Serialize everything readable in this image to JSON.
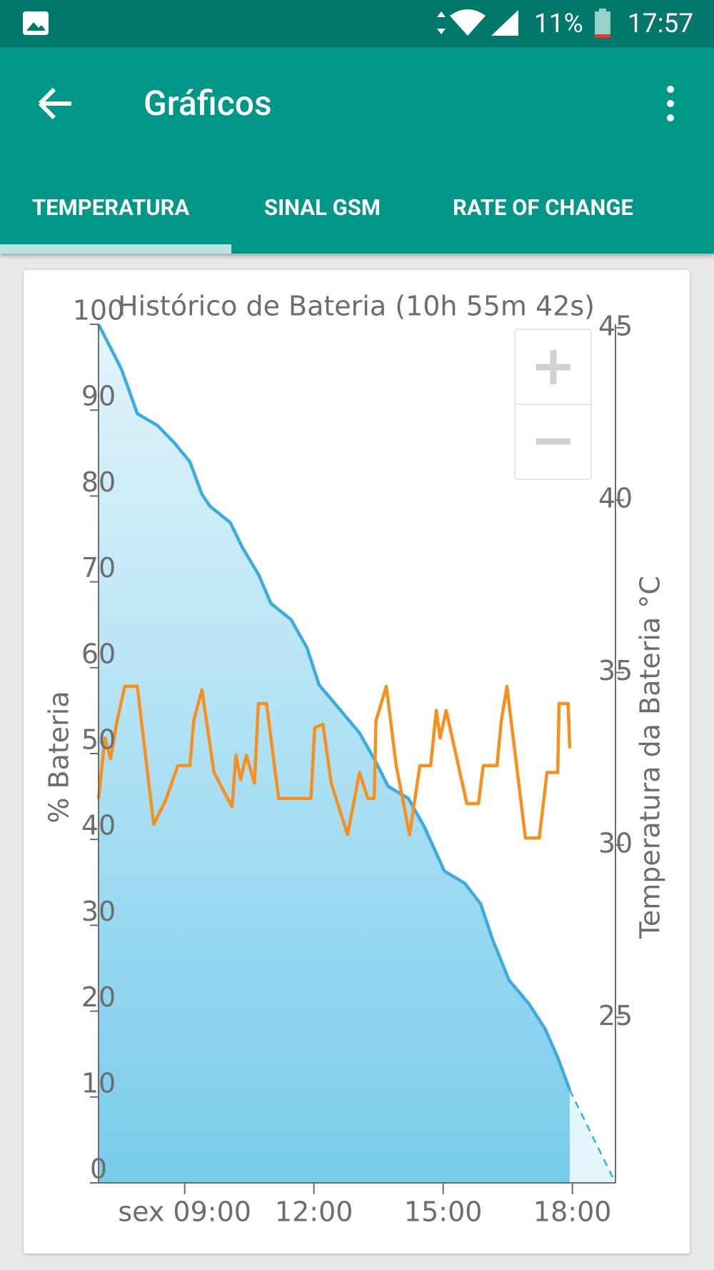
{
  "status_bar": {
    "battery": "11%",
    "time": "17:57"
  },
  "app_bar": {
    "title": "Gráficos"
  },
  "tabs": [
    "TEMPERATURA",
    "SINAL GSM",
    "RATE OF CHANGE"
  ],
  "chart_data": {
    "type": "line",
    "title": "Histórico de Bateria (10h 55m 42s)",
    "ylabel": "% Bateria",
    "y2label": "Temperatura da Bateria °C",
    "xlim": [
      7.0,
      19.0
    ],
    "xticks": [
      {
        "value": 9,
        "label": "sex 09:00"
      },
      {
        "value": 12,
        "label": "12:00"
      },
      {
        "value": 15,
        "label": "15:00"
      },
      {
        "value": 18,
        "label": "18:00"
      }
    ],
    "ylim": [
      0,
      100
    ],
    "yticks": [
      0,
      10,
      20,
      30,
      40,
      50,
      60,
      70,
      80,
      90,
      100
    ],
    "y2lim": [
      20.2,
      45.1
    ],
    "y2ticks": [
      25,
      30,
      35,
      40,
      45
    ],
    "grid": false,
    "series": [
      {
        "color": "#3aace0",
        "fill": true,
        "dashed": false,
        "x": [
          7.0,
          7.53,
          7.9,
          8.37,
          8.74,
          9.12,
          9.4,
          9.59,
          10.06,
          10.34,
          10.72,
          11.0,
          11.47,
          11.84,
          12.12,
          12.59,
          13.06,
          13.44,
          13.72,
          14.19,
          14.56,
          15.03,
          15.5,
          15.87,
          16.15,
          16.53,
          17.0,
          17.37,
          17.66,
          17.94
        ],
        "values": [
          100,
          94.8,
          89.6,
          88.2,
          86.3,
          84,
          80.2,
          78.8,
          76.9,
          74,
          70.8,
          67.5,
          65.6,
          62.3,
          58,
          55.2,
          52.4,
          49,
          46.2,
          44.8,
          41.5,
          36.3,
          34.9,
          32.5,
          28.3,
          23.6,
          20.8,
          17.9,
          14.6,
          10.8
        ]
      },
      {
        "color": "#3aace0",
        "fill": true,
        "dashed": true,
        "x": [
          17.94,
          19.0
        ],
        "values": [
          10.8,
          0
        ]
      },
      {
        "color": "#f7901e",
        "fill": false,
        "dashed": false,
        "axis": "y2",
        "x": [
          7.0,
          7.15,
          7.28,
          7.43,
          7.61,
          7.9,
          8.28,
          8.56,
          8.84,
          9.12,
          9.21,
          9.4,
          9.68,
          10.1,
          10.19,
          10.3,
          10.43,
          10.62,
          10.71,
          10.9,
          11.18,
          11.93,
          12.02,
          12.21,
          12.4,
          12.78,
          13.06,
          13.25,
          13.4,
          13.44,
          13.68,
          13.91,
          14.22,
          14.46,
          14.71,
          14.84,
          14.93,
          15.07,
          15.55,
          15.82,
          15.93,
          16.25,
          16.35,
          16.48,
          16.91,
          17.23,
          17.41,
          17.66,
          17.69,
          17.9,
          17.94
        ],
        "values": [
          31.35,
          33.1,
          32.5,
          33.6,
          34.6,
          34.6,
          30.6,
          31.3,
          32.3,
          32.3,
          33.6,
          34.5,
          32.1,
          31.1,
          32.6,
          31.9,
          32.6,
          31.8,
          34.1,
          34.1,
          31.35,
          31.35,
          33.4,
          33.5,
          31.8,
          30.3,
          32.1,
          31.35,
          31.35,
          33.6,
          34.6,
          32.3,
          30.3,
          32.3,
          32.3,
          33.9,
          33.1,
          33.9,
          31.2,
          31.2,
          32.3,
          32.3,
          33.6,
          34.6,
          30.2,
          30.2,
          32.1,
          32.1,
          34.1,
          34.1,
          32.8
        ]
      }
    ]
  }
}
